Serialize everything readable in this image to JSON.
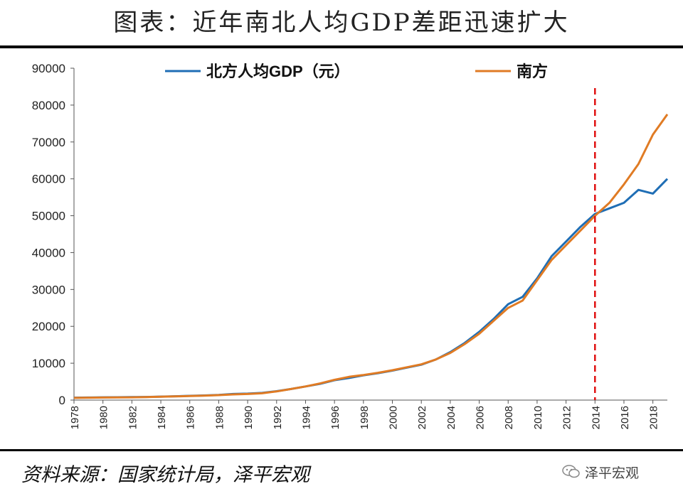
{
  "title": "图表：近年南北人均GDP差距迅速扩大",
  "source": "资料来源：国家统计局，泽平宏观",
  "watermark": {
    "text": "泽平宏观",
    "icon": "wechat-icon"
  },
  "chart_data": {
    "type": "line",
    "title": "",
    "xlabel": "",
    "ylabel": "",
    "ylim": [
      0,
      90000
    ],
    "xlim": [
      1978,
      2019
    ],
    "yticks": [
      0,
      10000,
      20000,
      30000,
      40000,
      50000,
      60000,
      70000,
      80000,
      90000
    ],
    "xticks": [
      1978,
      1980,
      1982,
      1984,
      1986,
      1988,
      1990,
      1992,
      1994,
      1996,
      1998,
      2000,
      2002,
      2004,
      2006,
      2008,
      2010,
      2012,
      2014,
      2016,
      2018
    ],
    "x": [
      1978,
      1979,
      1980,
      1981,
      1982,
      1983,
      1984,
      1985,
      1986,
      1987,
      1988,
      1989,
      1990,
      1991,
      1992,
      1993,
      1994,
      1995,
      1996,
      1997,
      1998,
      1999,
      2000,
      2001,
      2002,
      2003,
      2004,
      2005,
      2006,
      2007,
      2008,
      2009,
      2010,
      2011,
      2012,
      2013,
      2014,
      2015,
      2016,
      2017,
      2018,
      2019
    ],
    "series": [
      {
        "name": "北方人均GDP（元）",
        "color": "#1f6eb5",
        "values": [
          650,
          700,
          750,
          780,
          800,
          850,
          950,
          1050,
          1150,
          1250,
          1400,
          1650,
          1750,
          1950,
          2400,
          3000,
          3700,
          4400,
          5400,
          6000,
          6700,
          7300,
          8000,
          8800,
          9600,
          11000,
          13000,
          15500,
          18500,
          22000,
          26000,
          28000,
          33000,
          39000,
          43000,
          47000,
          50500,
          52000,
          53500,
          57000,
          56000,
          60000
        ]
      },
      {
        "name": "南方",
        "color": "#e07b24",
        "values": [
          600,
          650,
          700,
          730,
          750,
          800,
          900,
          1000,
          1100,
          1200,
          1350,
          1550,
          1650,
          1850,
          2350,
          3000,
          3700,
          4500,
          5500,
          6300,
          6800,
          7400,
          8100,
          8900,
          9700,
          11000,
          12800,
          15200,
          18000,
          21500,
          25000,
          27000,
          32500,
          38000,
          42000,
          46000,
          50000,
          53500,
          58500,
          64000,
          72000,
          77500
        ]
      }
    ],
    "legend": "top",
    "annotation": {
      "x": 2014,
      "style": "dashed",
      "color": "#e01010"
    },
    "grid": false
  }
}
